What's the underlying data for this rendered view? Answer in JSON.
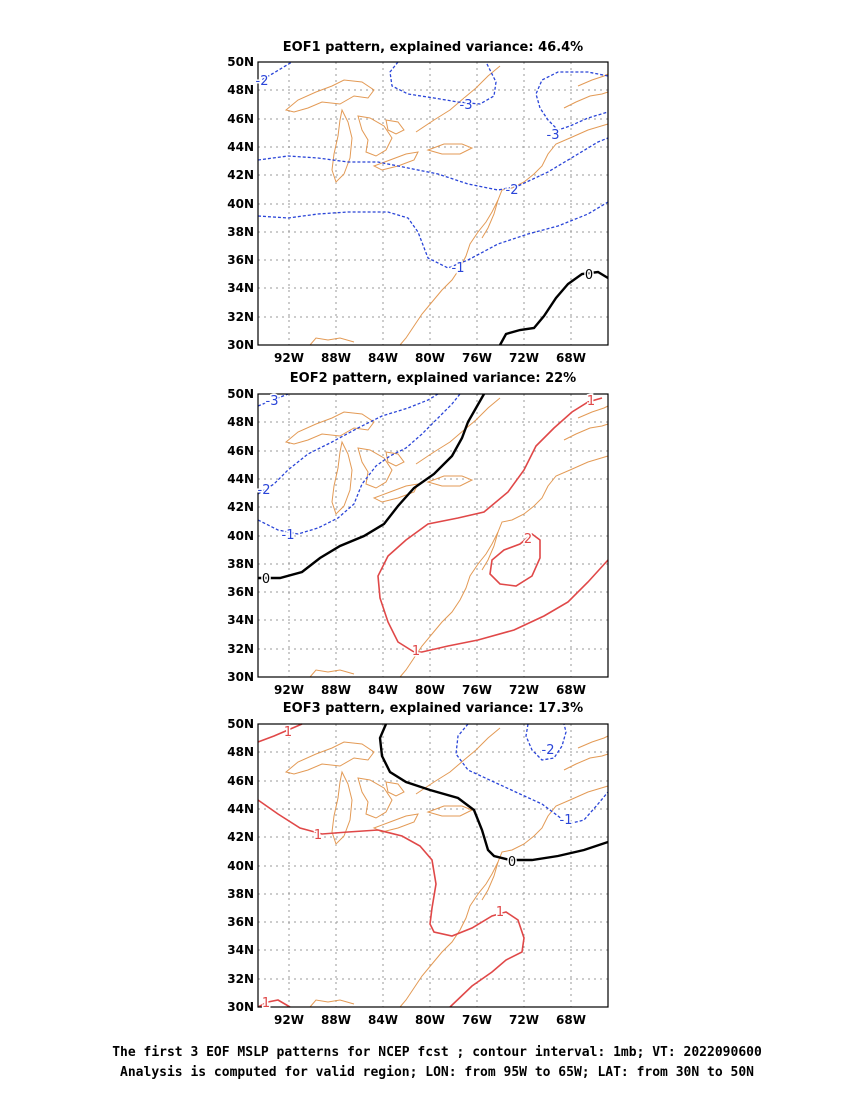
{
  "panels": [
    {
      "title": "EOF1 pattern, explained variance: 46.4%",
      "explained_variance_percent": 46.4,
      "contour_labels": [
        "-2",
        "-3",
        "-3",
        "-2",
        "-1",
        "0"
      ]
    },
    {
      "title": "EOF2 pattern, explained variance: 22%",
      "explained_variance_percent": 22,
      "contour_labels": [
        "-3",
        "-2",
        "-1",
        "0",
        "1",
        "2",
        "1"
      ]
    },
    {
      "title": "EOF3 pattern, explained variance: 17.3%",
      "explained_variance_percent": 17.3,
      "contour_labels": [
        "1",
        "1",
        "1",
        "1",
        "0",
        "-2",
        "-1"
      ]
    }
  ],
  "axes": {
    "lon_ticks": [
      "92W",
      "88W",
      "84W",
      "80W",
      "76W",
      "72W",
      "68W"
    ],
    "lat_ticks": [
      "50N",
      "48N",
      "46N",
      "44N",
      "42N",
      "40N",
      "38N",
      "36N",
      "34N",
      "32N",
      "30N"
    ],
    "lon_range": [
      -95,
      -65
    ],
    "lat_range": [
      30,
      50
    ]
  },
  "caption": {
    "line1": "The first 3 EOF MSLP patterns for NCEP fcst ; contour interval: 1mb; VT: 2022090600",
    "line2": "Analysis is computed for valid region; LON: from 95W to 65W; LAT: from 30N to 50N"
  },
  "colors": {
    "negative_contour": "#2a45d8",
    "positive_contour": "#e04848",
    "zero_contour": "#000000",
    "coastline": "#e39a55"
  }
}
